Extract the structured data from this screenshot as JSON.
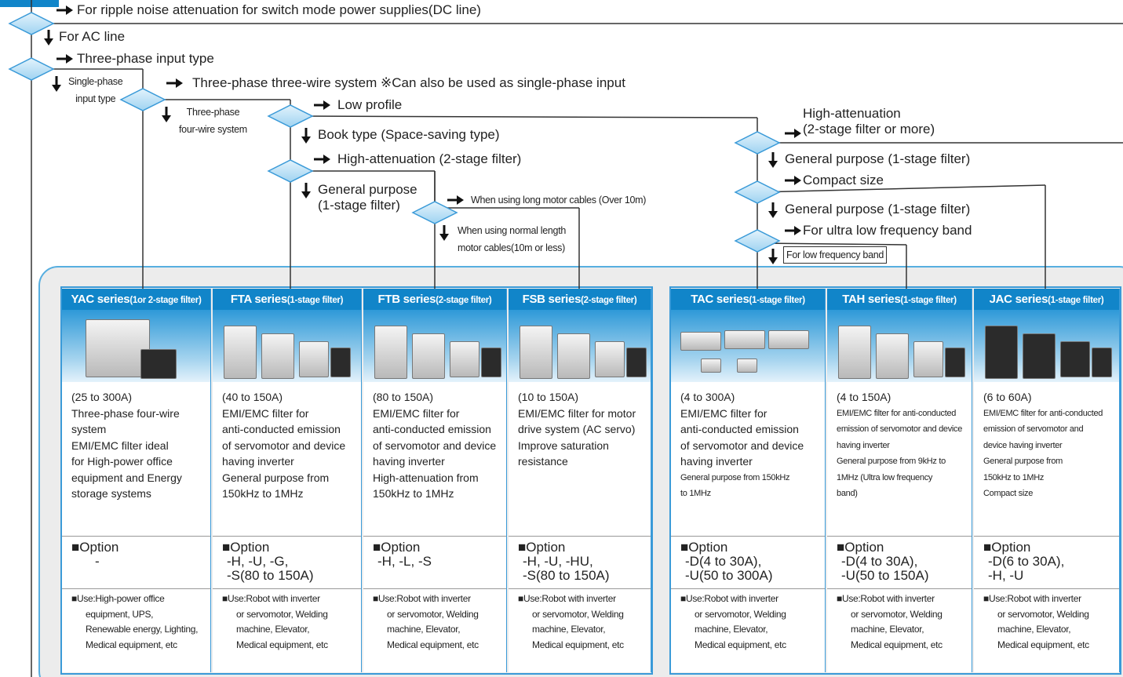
{
  "branches": [
    {
      "lines": [
        "For ripple noise attenuation for switch mode power supplies(DC line)"
      ]
    },
    {
      "lines": [
        "For AC line"
      ]
    },
    {
      "lines": [
        "Three-phase input type"
      ]
    },
    {
      "lines": [
        "Single-phase",
        "input type"
      ]
    },
    {
      "lines": [
        "Three-phase three-wire system ※Can also be used as single-phase input"
      ]
    },
    {
      "lines": [
        "Three-phase",
        "four-wire system"
      ]
    },
    {
      "lines": [
        "Low profile"
      ]
    },
    {
      "lines": [
        "Book type (Space-saving type)"
      ]
    },
    {
      "lines": [
        "High-attenuation (2-stage filter)"
      ]
    },
    {
      "lines": [
        "General purpose",
        "(1-stage filter)"
      ]
    },
    {
      "lines": [
        "When using long motor cables (Over 10m)"
      ]
    },
    {
      "lines": [
        "When using normal length",
        "motor cables(10m or less)"
      ]
    },
    {
      "lines": [
        "High-attenuation",
        "(2-stage filter or more)"
      ]
    },
    {
      "lines": [
        "General purpose (1-stage filter)"
      ]
    },
    {
      "lines": [
        "Compact size"
      ]
    },
    {
      "lines": [
        "General purpose (1-stage filter)"
      ]
    },
    {
      "lines": [
        "For ultra low frequency band"
      ]
    },
    {
      "lines": [
        "For low frequency band"
      ]
    }
  ],
  "cards": [
    {
      "title": "YAC series",
      "note": "(1or 2-stage filter)",
      "range": "(25 to 300A)",
      "description": [
        "Three-phase four-wire",
        "system",
        "EMI/EMC filter ideal",
        "for High-power office",
        "equipment and Energy",
        "storage systems"
      ],
      "option_label": "■Option",
      "options": [
        "-"
      ],
      "use": [
        "■Use:High-power office",
        "equipment, UPS,",
        "Renewable energy, Lighting,",
        "Medical equipment, etc"
      ]
    },
    {
      "title": "FTA series",
      "note": "(1-stage filter)",
      "range": "(40 to 150A)",
      "description": [
        "EMI/EMC filter for",
        "anti-conducted emission",
        "of servomotor and device",
        "having inverter",
        "General purpose from",
        "150kHz to 1MHz"
      ],
      "option_label": "■Option",
      "options": [
        "-H, -U, -G,",
        "-S(80 to 150A)"
      ],
      "use": [
        "■Use:Robot with inverter",
        "or servomotor, Welding",
        "machine, Elevator,",
        "Medical equipment, etc"
      ]
    },
    {
      "title": "FTB series",
      "note": "(2-stage filter)",
      "range": "(80 to 150A)",
      "description": [
        "EMI/EMC filter for",
        "anti-conducted emission",
        "of servomotor and device",
        "having inverter",
        "High-attenuation from",
        "150kHz to 1MHz"
      ],
      "option_label": "■Option",
      "options": [
        "-H, -L, -S"
      ],
      "use": [
        "■Use:Robot with inverter",
        "or servomotor, Welding",
        "machine, Elevator,",
        "Medical equipment, etc"
      ]
    },
    {
      "title": "FSB series",
      "note": "(2-stage filter)",
      "range": "(10 to 150A)",
      "description": [
        "EMI/EMC filter for motor",
        "drive system (AC servo)",
        "Improve saturation",
        "resistance"
      ],
      "option_label": "■Option",
      "options": [
        "-H, -U, -HU,",
        "-S(80 to 150A)"
      ],
      "use": [
        "■Use:Robot with inverter",
        "or servomotor, Welding",
        "machine, Elevator,",
        "Medical equipment, etc"
      ]
    },
    {
      "title": "TAC series",
      "note": "(1-stage filter)",
      "range": "(4 to 300A)",
      "description": [
        "EMI/EMC filter for",
        "anti-conducted emission",
        "of servomotor and device",
        "having inverter",
        "General purpose from 150kHz",
        "to 1MHz"
      ],
      "option_label": "■Option",
      "options": [
        "-D(4 to 30A),",
        "-U(50 to 300A)"
      ],
      "use": [
        "■Use:Robot with inverter",
        "or servomotor, Welding",
        "machine, Elevator,",
        "Medical equipment, etc"
      ]
    },
    {
      "title": "TAH series",
      "note": "(1-stage filter)",
      "range": "(4 to 150A)",
      "description": [
        "EMI/EMC filter for anti-conducted",
        "emission of servomotor and device",
        "having inverter",
        "General purpose from 9kHz to",
        "1MHz (Ultra low frequency",
        "band)"
      ],
      "option_label": "■Option",
      "options": [
        "-D(4 to 30A),",
        "-U(50 to 150A)"
      ],
      "use": [
        "■Use:Robot with inverter",
        "or servomotor, Welding",
        "machine, Elevator,",
        "Medical equipment, etc"
      ]
    },
    {
      "title": "JAC series",
      "note": "(1-stage filter)",
      "range": "(6 to 60A)",
      "description": [
        "EMI/EMC filter for anti-conducted",
        "emission of servomotor and",
        "device having inverter",
        "General purpose from",
        "150kHz to 1MHz",
        "Compact size"
      ],
      "option_label": "■Option",
      "options": [
        "-D(6 to 30A),",
        "-H, -U"
      ],
      "use": [
        "■Use:Robot with inverter",
        "or servomotor, Welding",
        "machine, Elevator,",
        "Medical equipment, etc"
      ]
    }
  ]
}
